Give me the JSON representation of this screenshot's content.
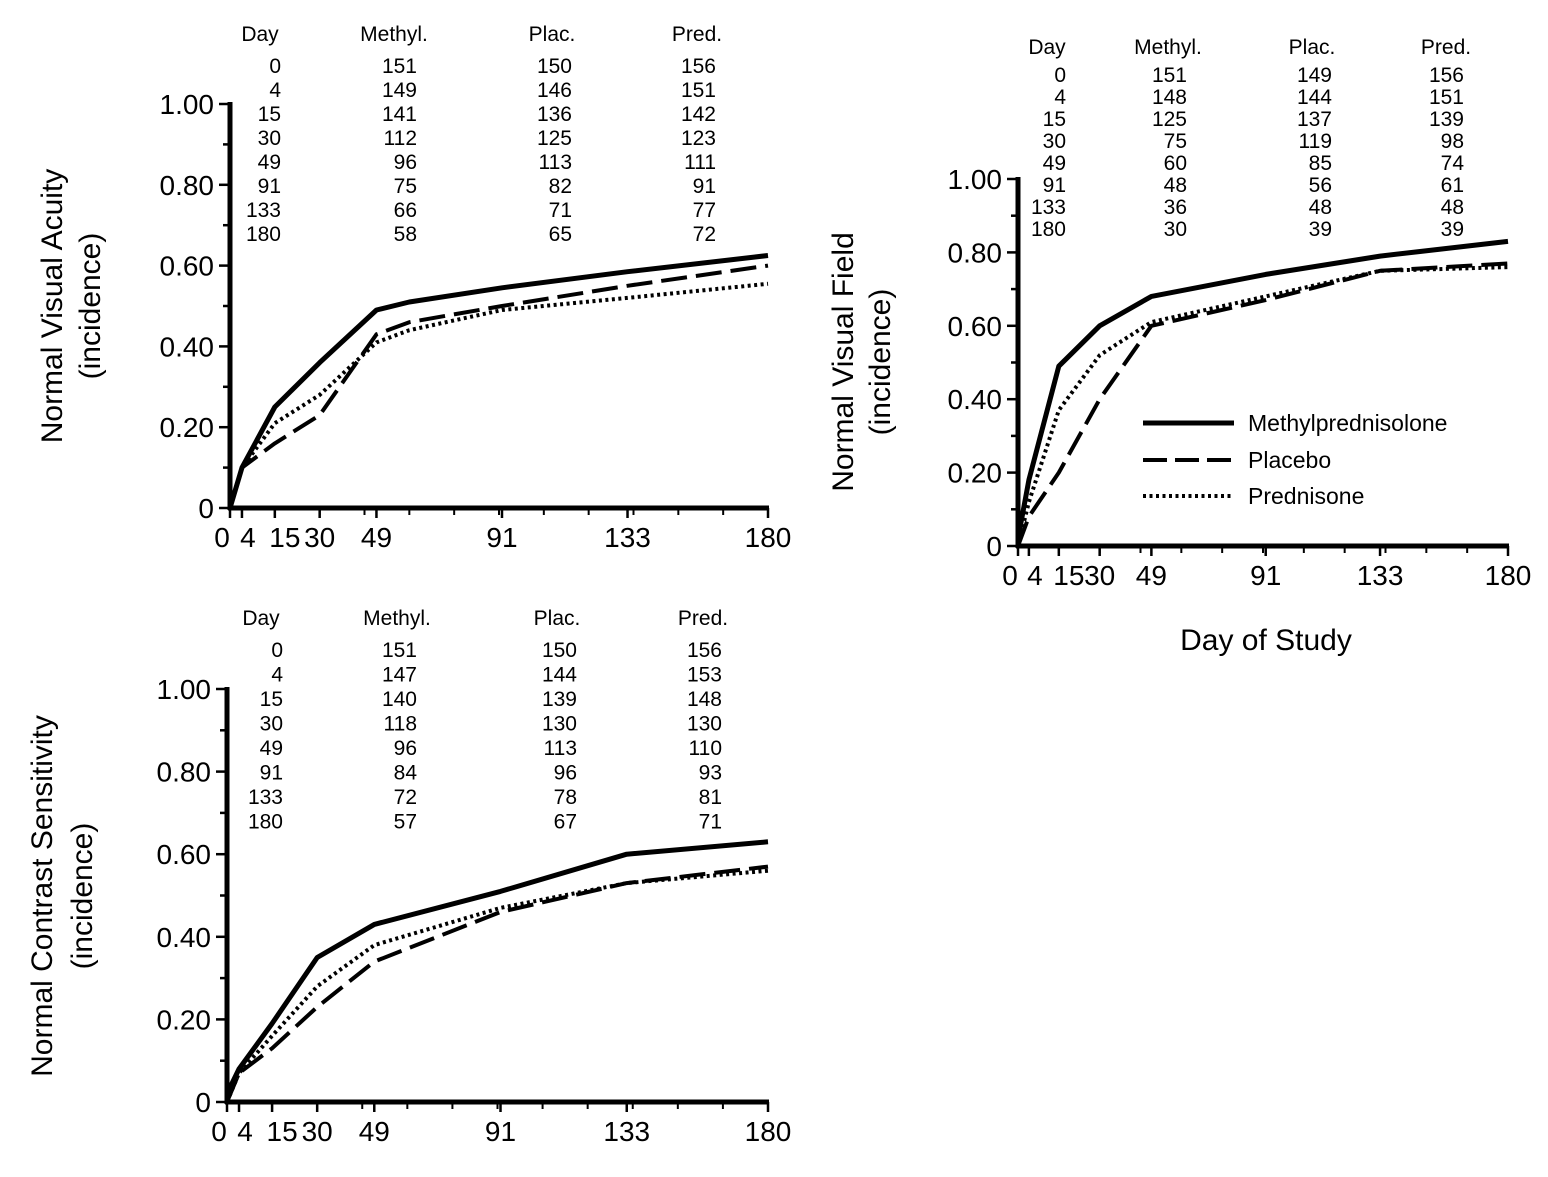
{
  "legend": {
    "items": [
      {
        "label": "Methylprednisolone",
        "style": "solid"
      },
      {
        "label": "Placebo",
        "style": "dashed"
      },
      {
        "label": "Prednisone",
        "style": "dotted"
      }
    ]
  },
  "chart_data": [
    {
      "type": "line",
      "panel": "visual-acuity",
      "ylabel": "Normal Visual Acuity",
      "ylabel_sub": "(incidence)",
      "xlabel": "",
      "xlim": [
        0,
        180
      ],
      "ylim": [
        0,
        1.0
      ],
      "x_ticks": [
        0,
        4,
        15,
        30,
        49,
        91,
        133,
        180
      ],
      "y_ticks": [
        0,
        0.2,
        0.4,
        0.6,
        0.8,
        1.0
      ],
      "y_tick_labels": [
        "0",
        "0.20",
        "0.40",
        "0.60",
        "0.80",
        "1.00"
      ],
      "series": [
        {
          "name": "Methylprednisolone",
          "style": "solid",
          "x": [
            0,
            4,
            15,
            30,
            49,
            60,
            91,
            133,
            180
          ],
          "y": [
            0.0,
            0.1,
            0.25,
            0.36,
            0.49,
            0.51,
            0.545,
            0.585,
            0.625
          ]
        },
        {
          "name": "Placebo",
          "style": "dashed",
          "x": [
            0,
            4,
            15,
            30,
            49,
            60,
            91,
            133,
            180
          ],
          "y": [
            0.0,
            0.1,
            0.16,
            0.23,
            0.43,
            0.46,
            0.5,
            0.55,
            0.6
          ]
        },
        {
          "name": "Prednisone",
          "style": "dotted",
          "x": [
            0,
            4,
            15,
            30,
            49,
            60,
            91,
            133,
            180
          ],
          "y": [
            0.0,
            0.1,
            0.21,
            0.28,
            0.41,
            0.44,
            0.49,
            0.52,
            0.555
          ]
        }
      ],
      "table": {
        "headers": [
          "Day",
          "Methyl.",
          "Plac.",
          "Pred."
        ],
        "rows": [
          [
            "0",
            "151",
            "150",
            "156"
          ],
          [
            "4",
            "149",
            "146",
            "151"
          ],
          [
            "15",
            "141",
            "136",
            "142"
          ],
          [
            "30",
            "112",
            "125",
            "123"
          ],
          [
            "49",
            "96",
            "113",
            "111"
          ],
          [
            "91",
            "75",
            "82",
            "91"
          ],
          [
            "133",
            "66",
            "71",
            "77"
          ],
          [
            "180",
            "58",
            "65",
            "72"
          ]
        ]
      }
    },
    {
      "type": "line",
      "panel": "visual-field",
      "ylabel": "Normal Visual Field",
      "ylabel_sub": "(incidence)",
      "xlabel": "Day of Study",
      "xlim": [
        0,
        180
      ],
      "ylim": [
        0,
        1.0
      ],
      "x_ticks": [
        0,
        4,
        15,
        30,
        49,
        91,
        133,
        180
      ],
      "y_ticks": [
        0,
        0.2,
        0.4,
        0.6,
        0.8,
        1.0
      ],
      "y_tick_labels": [
        "0",
        "0.20",
        "0.40",
        "0.60",
        "0.80",
        "1.00"
      ],
      "series": [
        {
          "name": "Methylprednisolone",
          "style": "solid",
          "x": [
            0,
            4,
            15,
            30,
            49,
            91,
            133,
            180
          ],
          "y": [
            0.02,
            0.18,
            0.49,
            0.6,
            0.68,
            0.74,
            0.79,
            0.83
          ]
        },
        {
          "name": "Placebo",
          "style": "dashed",
          "x": [
            0,
            4,
            15,
            30,
            49,
            91,
            133,
            180
          ],
          "y": [
            0.0,
            0.08,
            0.2,
            0.4,
            0.6,
            0.67,
            0.75,
            0.77
          ]
        },
        {
          "name": "Prednisone",
          "style": "dotted",
          "x": [
            0,
            4,
            15,
            30,
            49,
            91,
            133,
            180
          ],
          "y": [
            0.0,
            0.12,
            0.37,
            0.52,
            0.61,
            0.68,
            0.75,
            0.76
          ]
        }
      ],
      "table": {
        "headers": [
          "Day",
          "Methyl.",
          "Plac.",
          "Pred."
        ],
        "rows": [
          [
            "0",
            "151",
            "149",
            "156"
          ],
          [
            "4",
            "148",
            "144",
            "151"
          ],
          [
            "15",
            "125",
            "137",
            "139"
          ],
          [
            "30",
            "75",
            "119",
            "98"
          ],
          [
            "49",
            "60",
            "85",
            "74"
          ],
          [
            "91",
            "48",
            "56",
            "61"
          ],
          [
            "133",
            "36",
            "48",
            "48"
          ],
          [
            "180",
            "30",
            "39",
            "39"
          ]
        ]
      }
    },
    {
      "type": "line",
      "panel": "contrast-sensitivity",
      "ylabel": "Normal Contrast Sensitivity",
      "ylabel_sub": "(incidence)",
      "xlabel": "",
      "xlim": [
        0,
        180
      ],
      "ylim": [
        0,
        1.0
      ],
      "x_ticks": [
        0,
        4,
        15,
        30,
        49,
        91,
        133,
        180
      ],
      "y_ticks": [
        0,
        0.2,
        0.4,
        0.6,
        0.8,
        1.0
      ],
      "y_tick_labels": [
        "0",
        "0.20",
        "0.40",
        "0.60",
        "0.80",
        "1.00"
      ],
      "series": [
        {
          "name": "Methylprednisolone",
          "style": "solid",
          "x": [
            0,
            4,
            15,
            30,
            49,
            91,
            133,
            180
          ],
          "y": [
            0.02,
            0.08,
            0.19,
            0.35,
            0.43,
            0.51,
            0.6,
            0.63
          ]
        },
        {
          "name": "Placebo",
          "style": "dashed",
          "x": [
            0,
            4,
            15,
            30,
            49,
            91,
            133,
            180
          ],
          "y": [
            0.0,
            0.07,
            0.13,
            0.23,
            0.34,
            0.46,
            0.53,
            0.57
          ]
        },
        {
          "name": "Prednisone",
          "style": "dotted",
          "x": [
            0,
            4,
            15,
            30,
            49,
            91,
            133,
            180
          ],
          "y": [
            0.0,
            0.07,
            0.16,
            0.28,
            0.38,
            0.47,
            0.53,
            0.56
          ]
        }
      ],
      "table": {
        "headers": [
          "Day",
          "Methyl.",
          "Plac.",
          "Pred."
        ],
        "rows": [
          [
            "0",
            "151",
            "150",
            "156"
          ],
          [
            "4",
            "147",
            "144",
            "153"
          ],
          [
            "15",
            "140",
            "139",
            "148"
          ],
          [
            "30",
            "118",
            "130",
            "130"
          ],
          [
            "49",
            "96",
            "113",
            "110"
          ],
          [
            "91",
            "84",
            "96",
            "93"
          ],
          [
            "133",
            "72",
            "78",
            "81"
          ],
          [
            "180",
            "57",
            "67",
            "71"
          ]
        ]
      }
    }
  ]
}
